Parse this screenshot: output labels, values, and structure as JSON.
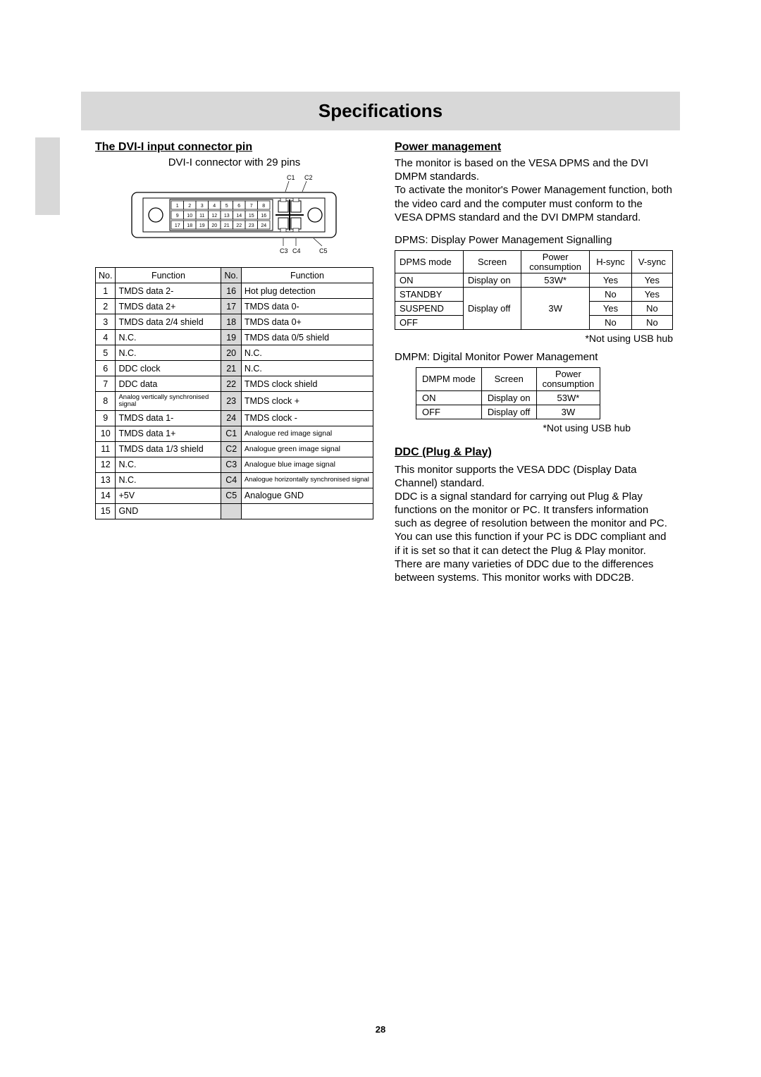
{
  "title": "Specifications",
  "page_number": "28",
  "left": {
    "heading": "The DVI-I input connector pin",
    "caption": "DVI-I connector with 29 pins",
    "svg_labels": {
      "c1": "C1",
      "c2": "C2",
      "c3": "C3",
      "c4": "C4",
      "c5": "C5"
    },
    "pin_header": {
      "no": "No.",
      "fn": "Function"
    },
    "pins_left": [
      {
        "n": "1",
        "f": "TMDS data 2-"
      },
      {
        "n": "2",
        "f": "TMDS data 2+"
      },
      {
        "n": "3",
        "f": "TMDS data 2/4 shield"
      },
      {
        "n": "4",
        "f": "N.C."
      },
      {
        "n": "5",
        "f": "N.C."
      },
      {
        "n": "6",
        "f": "DDC clock"
      },
      {
        "n": "7",
        "f": "DDC data"
      },
      {
        "n": "8",
        "f": "Analog vertically synchronised signal",
        "small": true
      },
      {
        "n": "9",
        "f": "TMDS data 1-"
      },
      {
        "n": "10",
        "f": "TMDS data 1+"
      },
      {
        "n": "11",
        "f": "TMDS data 1/3 shield"
      },
      {
        "n": "12",
        "f": "N.C."
      },
      {
        "n": "13",
        "f": "N.C."
      },
      {
        "n": "14",
        "f": "+5V"
      },
      {
        "n": "15",
        "f": "GND"
      }
    ],
    "pins_right": [
      {
        "n": "16",
        "f": "Hot plug detection"
      },
      {
        "n": "17",
        "f": "TMDS data 0-"
      },
      {
        "n": "18",
        "f": "TMDS data 0+"
      },
      {
        "n": "19",
        "f": "TMDS data 0/5 shield"
      },
      {
        "n": "20",
        "f": "N.C."
      },
      {
        "n": "21",
        "f": "N.C."
      },
      {
        "n": "22",
        "f": "TMDS clock shield"
      },
      {
        "n": "23",
        "f": "TMDS clock +"
      },
      {
        "n": "24",
        "f": "TMDS clock -"
      },
      {
        "n": "C1",
        "f": "Analogue red image signal",
        "smaller": true
      },
      {
        "n": "C2",
        "f": "Analogue green image signal",
        "smaller": true
      },
      {
        "n": "C3",
        "f": "Analogue blue image signal",
        "smaller": true
      },
      {
        "n": "C4",
        "f": "Analogue horizontally synchronised signal",
        "small": true
      },
      {
        "n": "C5",
        "f": "Analogue GND"
      }
    ]
  },
  "right": {
    "pm_heading": "Power management",
    "pm_para1": "The monitor is based on the VESA DPMS and the DVI DMPM standards.",
    "pm_para2": "To activate the monitor's Power Management function, both the video card and the computer must conform to the VESA DPMS standard and the DVI DMPM standard.",
    "dpms_label": "DPMS: Display Power Management Signalling",
    "dpms_header": [
      "DPMS mode",
      "Screen",
      "Power consumption",
      "H-sync",
      "V-sync"
    ],
    "dpms_rows": {
      "on": {
        "mode": "ON",
        "screen": "Display on",
        "power": "53W*",
        "h": "Yes",
        "v": "Yes"
      },
      "standby": {
        "mode": "STANDBY",
        "h": "No",
        "v": "Yes"
      },
      "suspend": {
        "mode": "SUSPEND",
        "screen": "Display off",
        "power": "3W",
        "h": "Yes",
        "v": "No"
      },
      "off": {
        "mode": "OFF",
        "h": "No",
        "v": "No"
      }
    },
    "note": "*Not using USB hub",
    "dmpm_label": "DMPM: Digital Monitor Power Management",
    "dmpm_header": [
      "DMPM mode",
      "Screen",
      "Power consumption"
    ],
    "dmpm_rows": {
      "on": {
        "mode": "ON",
        "screen": "Display on",
        "power": "53W*"
      },
      "off": {
        "mode": "OFF",
        "screen": "Display off",
        "power": "3W"
      }
    },
    "ddc_heading": "DDC (Plug & Play)",
    "ddc_para1": "This monitor supports the VESA DDC (Display Data Channel) standard.",
    "ddc_para2": "DDC is a signal standard for carrying out Plug & Play functions on the monitor or PC. It transfers information such as degree of resolution between the monitor and PC. You can use this function if your PC is DDC compliant and if it is set so that it can detect the Plug & Play monitor.",
    "ddc_para3": "There are many varieties of DDC due to the differences between systems. This monitor works with DDC2B."
  }
}
